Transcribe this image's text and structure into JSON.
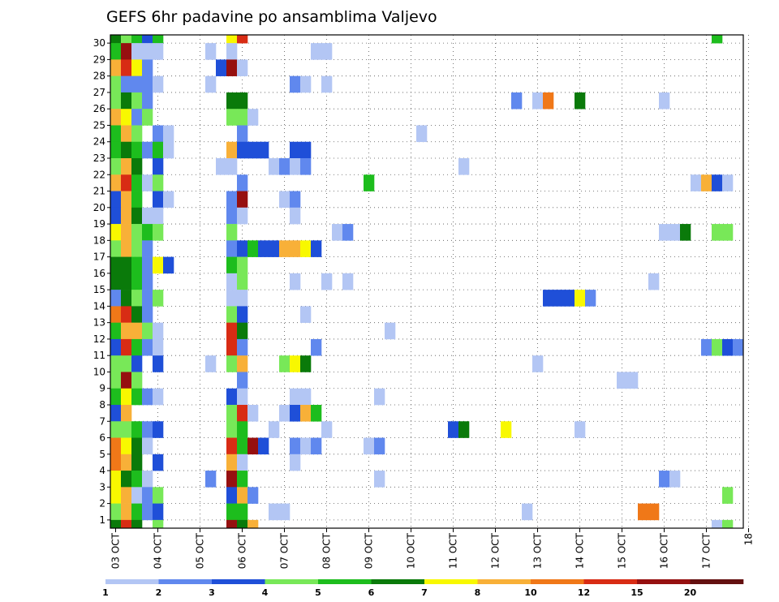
{
  "chart_data": {
    "type": "heatmap",
    "title": "GEFS 6hr padavine po ansamblima Valjevo",
    "xlabel": "",
    "ylabel": "",
    "x_labels": [
      "03 OCT",
      "04 OCT",
      "05 OCT",
      "06 OCT",
      "07 OCT",
      "08 OCT",
      "09 OCT",
      "10 OCT",
      "11 OCT",
      "12 OCT",
      "13 OCT",
      "14 OCT",
      "15 OCT",
      "16 OCT",
      "17 OCT",
      "18"
    ],
    "y_labels": [
      "1",
      "2",
      "3",
      "4",
      "5",
      "6",
      "7",
      "8",
      "9",
      "10",
      "11",
      "12",
      "13",
      "14",
      "15",
      "16",
      "17",
      "18",
      "19",
      "20",
      "21",
      "22",
      "23",
      "24",
      "25",
      "26",
      "27",
      "28",
      "29",
      "30"
    ],
    "x_range": [
      0,
      60
    ],
    "y_range": [
      0,
      30
    ],
    "gridlines": true,
    "colorbar": {
      "labels": [
        "1",
        "2",
        "3",
        "4",
        "5",
        "6",
        "7",
        "8",
        "10",
        "12",
        "15",
        "20"
      ],
      "colors": [
        "#b3c6f4",
        "#6088ee",
        "#1f4fd8",
        "#78e858",
        "#1dbd1d",
        "#0a7a0a",
        "#f8f800",
        "#f8b038",
        "#f07818",
        "#d82c14",
        "#961010",
        "#641010"
      ]
    },
    "cells_note": "each cell: [member, step, color_index]; step = 6-hour interval from 03 OCT 00Z, color_index into colorbar.colors",
    "cells": [
      [
        30,
        0,
        5
      ],
      [
        30,
        1,
        3
      ],
      [
        30,
        2,
        4
      ],
      [
        30,
        3,
        2
      ],
      [
        30,
        4,
        4
      ],
      [
        30,
        11,
        6
      ],
      [
        30,
        12,
        9
      ],
      [
        30,
        57,
        4
      ],
      [
        29,
        0,
        4
      ],
      [
        29,
        1,
        10
      ],
      [
        29,
        2,
        0
      ],
      [
        29,
        3,
        0
      ],
      [
        29,
        4,
        0
      ],
      [
        29,
        9,
        0
      ],
      [
        29,
        11,
        0
      ],
      [
        29,
        19,
        0
      ],
      [
        29,
        20,
        0
      ],
      [
        28,
        0,
        7
      ],
      [
        28,
        1,
        9
      ],
      [
        28,
        2,
        6
      ],
      [
        28,
        3,
        1
      ],
      [
        28,
        10,
        2
      ],
      [
        28,
        11,
        10
      ],
      [
        28,
        12,
        0
      ],
      [
        27,
        0,
        3
      ],
      [
        27,
        1,
        1
      ],
      [
        27,
        2,
        1
      ],
      [
        27,
        3,
        1
      ],
      [
        27,
        4,
        0
      ],
      [
        27,
        9,
        0
      ],
      [
        27,
        17,
        1
      ],
      [
        27,
        18,
        0
      ],
      [
        27,
        20,
        0
      ],
      [
        26,
        0,
        3
      ],
      [
        26,
        1,
        5
      ],
      [
        26,
        2,
        3
      ],
      [
        26,
        3,
        1
      ],
      [
        26,
        11,
        5
      ],
      [
        26,
        12,
        5
      ],
      [
        26,
        38,
        1
      ],
      [
        26,
        40,
        0
      ],
      [
        26,
        41,
        8
      ],
      [
        26,
        44,
        5
      ],
      [
        26,
        52,
        0
      ],
      [
        25,
        0,
        7
      ],
      [
        25,
        1,
        6
      ],
      [
        25,
        2,
        1
      ],
      [
        25,
        3,
        3
      ],
      [
        25,
        11,
        3
      ],
      [
        25,
        12,
        3
      ],
      [
        25,
        13,
        0
      ],
      [
        24,
        0,
        4
      ],
      [
        24,
        1,
        7
      ],
      [
        24,
        2,
        3
      ],
      [
        24,
        4,
        1
      ],
      [
        24,
        5,
        0
      ],
      [
        24,
        12,
        1
      ],
      [
        24,
        29,
        0
      ],
      [
        23,
        0,
        4
      ],
      [
        23,
        1,
        5
      ],
      [
        23,
        2,
        4
      ],
      [
        23,
        3,
        1
      ],
      [
        23,
        4,
        4
      ],
      [
        23,
        5,
        0
      ],
      [
        23,
        11,
        7
      ],
      [
        23,
        12,
        2
      ],
      [
        23,
        13,
        2
      ],
      [
        23,
        14,
        2
      ],
      [
        23,
        17,
        2
      ],
      [
        23,
        18,
        2
      ],
      [
        22,
        0,
        3
      ],
      [
        22,
        1,
        7
      ],
      [
        22,
        2,
        5
      ],
      [
        22,
        4,
        2
      ],
      [
        22,
        10,
        0
      ],
      [
        22,
        11,
        0
      ],
      [
        22,
        15,
        0
      ],
      [
        22,
        16,
        1
      ],
      [
        22,
        17,
        0
      ],
      [
        22,
        18,
        1
      ],
      [
        22,
        33,
        0
      ],
      [
        21,
        0,
        7
      ],
      [
        21,
        1,
        9
      ],
      [
        21,
        2,
        4
      ],
      [
        21,
        3,
        0
      ],
      [
        21,
        4,
        3
      ],
      [
        21,
        12,
        1
      ],
      [
        21,
        24,
        4
      ],
      [
        21,
        55,
        0
      ],
      [
        21,
        56,
        7
      ],
      [
        21,
        57,
        2
      ],
      [
        21,
        58,
        0
      ],
      [
        20,
        0,
        2
      ],
      [
        20,
        1,
        7
      ],
      [
        20,
        2,
        4
      ],
      [
        20,
        4,
        2
      ],
      [
        20,
        5,
        0
      ],
      [
        20,
        11,
        1
      ],
      [
        20,
        12,
        10
      ],
      [
        20,
        16,
        0
      ],
      [
        20,
        17,
        1
      ],
      [
        19,
        0,
        2
      ],
      [
        19,
        1,
        7
      ],
      [
        19,
        2,
        5
      ],
      [
        19,
        3,
        0
      ],
      [
        19,
        4,
        0
      ],
      [
        19,
        11,
        1
      ],
      [
        19,
        12,
        0
      ],
      [
        19,
        17,
        0
      ],
      [
        18,
        0,
        6
      ],
      [
        18,
        1,
        7
      ],
      [
        18,
        2,
        3
      ],
      [
        18,
        3,
        4
      ],
      [
        18,
        4,
        3
      ],
      [
        18,
        11,
        3
      ],
      [
        18,
        21,
        0
      ],
      [
        18,
        22,
        1
      ],
      [
        18,
        52,
        0
      ],
      [
        18,
        53,
        0
      ],
      [
        18,
        54,
        5
      ],
      [
        18,
        57,
        3
      ],
      [
        18,
        58,
        3
      ],
      [
        17,
        0,
        3
      ],
      [
        17,
        1,
        7
      ],
      [
        17,
        2,
        3
      ],
      [
        17,
        3,
        1
      ],
      [
        17,
        11,
        1
      ],
      [
        17,
        12,
        2
      ],
      [
        17,
        13,
        4
      ],
      [
        17,
        14,
        2
      ],
      [
        17,
        15,
        2
      ],
      [
        17,
        16,
        7
      ],
      [
        17,
        17,
        7
      ],
      [
        17,
        18,
        6
      ],
      [
        17,
        19,
        2
      ],
      [
        16,
        0,
        5
      ],
      [
        16,
        1,
        5
      ],
      [
        16,
        2,
        4
      ],
      [
        16,
        3,
        1
      ],
      [
        16,
        4,
        6
      ],
      [
        16,
        5,
        2
      ],
      [
        16,
        11,
        4
      ],
      [
        16,
        12,
        3
      ],
      [
        15,
        0,
        5
      ],
      [
        15,
        1,
        5
      ],
      [
        15,
        2,
        4
      ],
      [
        15,
        3,
        1
      ],
      [
        15,
        11,
        0
      ],
      [
        15,
        12,
        3
      ],
      [
        15,
        17,
        0
      ],
      [
        15,
        20,
        0
      ],
      [
        15,
        22,
        0
      ],
      [
        15,
        51,
        0
      ],
      [
        14,
        0,
        1
      ],
      [
        14,
        1,
        5
      ],
      [
        14,
        2,
        3
      ],
      [
        14,
        3,
        1
      ],
      [
        14,
        4,
        3
      ],
      [
        14,
        11,
        0
      ],
      [
        14,
        12,
        0
      ],
      [
        14,
        41,
        2
      ],
      [
        14,
        42,
        2
      ],
      [
        14,
        43,
        2
      ],
      [
        14,
        44,
        6
      ],
      [
        14,
        45,
        1
      ],
      [
        13,
        0,
        8
      ],
      [
        13,
        1,
        9
      ],
      [
        13,
        2,
        5
      ],
      [
        13,
        3,
        1
      ],
      [
        13,
        11,
        3
      ],
      [
        13,
        12,
        2
      ],
      [
        13,
        18,
        0
      ],
      [
        12,
        0,
        4
      ],
      [
        12,
        1,
        7
      ],
      [
        12,
        2,
        7
      ],
      [
        12,
        3,
        3
      ],
      [
        12,
        4,
        0
      ],
      [
        12,
        11,
        9
      ],
      [
        12,
        12,
        5
      ],
      [
        12,
        26,
        0
      ],
      [
        11,
        0,
        2
      ],
      [
        11,
        1,
        9
      ],
      [
        11,
        2,
        4
      ],
      [
        11,
        3,
        1
      ],
      [
        11,
        4,
        0
      ],
      [
        11,
        11,
        9
      ],
      [
        11,
        12,
        1
      ],
      [
        11,
        19,
        1
      ],
      [
        11,
        56,
        1
      ],
      [
        11,
        57,
        3
      ],
      [
        11,
        58,
        2
      ],
      [
        11,
        59,
        1
      ],
      [
        10,
        0,
        3
      ],
      [
        10,
        1,
        3
      ],
      [
        10,
        2,
        2
      ],
      [
        10,
        4,
        2
      ],
      [
        10,
        9,
        0
      ],
      [
        10,
        11,
        3
      ],
      [
        10,
        12,
        7
      ],
      [
        10,
        16,
        3
      ],
      [
        10,
        17,
        6
      ],
      [
        10,
        18,
        5
      ],
      [
        10,
        40,
        0
      ],
      [
        9,
        0,
        3
      ],
      [
        9,
        1,
        10
      ],
      [
        9,
        2,
        3
      ],
      [
        9,
        12,
        1
      ],
      [
        9,
        48,
        0
      ],
      [
        9,
        49,
        0
      ],
      [
        8,
        0,
        4
      ],
      [
        8,
        1,
        6
      ],
      [
        8,
        2,
        4
      ],
      [
        8,
        3,
        1
      ],
      [
        8,
        4,
        0
      ],
      [
        8,
        11,
        2
      ],
      [
        8,
        12,
        0
      ],
      [
        8,
        17,
        0
      ],
      [
        8,
        18,
        0
      ],
      [
        8,
        25,
        0
      ],
      [
        7,
        0,
        2
      ],
      [
        7,
        1,
        7
      ],
      [
        7,
        11,
        3
      ],
      [
        7,
        12,
        9
      ],
      [
        7,
        13,
        0
      ],
      [
        7,
        16,
        0
      ],
      [
        7,
        17,
        2
      ],
      [
        7,
        18,
        7
      ],
      [
        7,
        19,
        4
      ],
      [
        6,
        0,
        3
      ],
      [
        6,
        1,
        3
      ],
      [
        6,
        2,
        4
      ],
      [
        6,
        3,
        1
      ],
      [
        6,
        4,
        2
      ],
      [
        6,
        11,
        3
      ],
      [
        6,
        12,
        4
      ],
      [
        6,
        15,
        0
      ],
      [
        6,
        20,
        0
      ],
      [
        6,
        32,
        2
      ],
      [
        6,
        33,
        5
      ],
      [
        6,
        37,
        6
      ],
      [
        6,
        44,
        0
      ],
      [
        5,
        0,
        8
      ],
      [
        5,
        1,
        6
      ],
      [
        5,
        2,
        5
      ],
      [
        5,
        3,
        0
      ],
      [
        5,
        11,
        9
      ],
      [
        5,
        12,
        4
      ],
      [
        5,
        13,
        10
      ],
      [
        5,
        14,
        2
      ],
      [
        5,
        17,
        1
      ],
      [
        5,
        18,
        0
      ],
      [
        5,
        19,
        1
      ],
      [
        5,
        24,
        0
      ],
      [
        5,
        25,
        1
      ],
      [
        4,
        0,
        8
      ],
      [
        4,
        1,
        7
      ],
      [
        4,
        2,
        5
      ],
      [
        4,
        4,
        2
      ],
      [
        4,
        11,
        7
      ],
      [
        4,
        12,
        0
      ],
      [
        4,
        17,
        0
      ],
      [
        3,
        0,
        6
      ],
      [
        3,
        1,
        5
      ],
      [
        3,
        2,
        4
      ],
      [
        3,
        3,
        0
      ],
      [
        3,
        9,
        1
      ],
      [
        3,
        11,
        10
      ],
      [
        3,
        12,
        4
      ],
      [
        3,
        25,
        0
      ],
      [
        3,
        52,
        1
      ],
      [
        3,
        53,
        0
      ],
      [
        2,
        0,
        6
      ],
      [
        2,
        1,
        7
      ],
      [
        2,
        2,
        0
      ],
      [
        2,
        3,
        1
      ],
      [
        2,
        4,
        3
      ],
      [
        2,
        11,
        2
      ],
      [
        2,
        12,
        7
      ],
      [
        2,
        13,
        1
      ],
      [
        2,
        58,
        3
      ],
      [
        1,
        0,
        3
      ],
      [
        1,
        1,
        7
      ],
      [
        1,
        2,
        4
      ],
      [
        1,
        3,
        1
      ],
      [
        1,
        4,
        2
      ],
      [
        1,
        11,
        4
      ],
      [
        1,
        12,
        4
      ],
      [
        1,
        15,
        0
      ],
      [
        1,
        16,
        0
      ],
      [
        1,
        39,
        0
      ],
      [
        1,
        50,
        8
      ],
      [
        1,
        51,
        8
      ],
      [
        0,
        0,
        5
      ],
      [
        0,
        1,
        9
      ],
      [
        0,
        2,
        5
      ],
      [
        0,
        4,
        3
      ],
      [
        0,
        11,
        10
      ],
      [
        0,
        12,
        5
      ],
      [
        0,
        13,
        7
      ],
      [
        0,
        57,
        0
      ],
      [
        0,
        58,
        3
      ]
    ]
  }
}
